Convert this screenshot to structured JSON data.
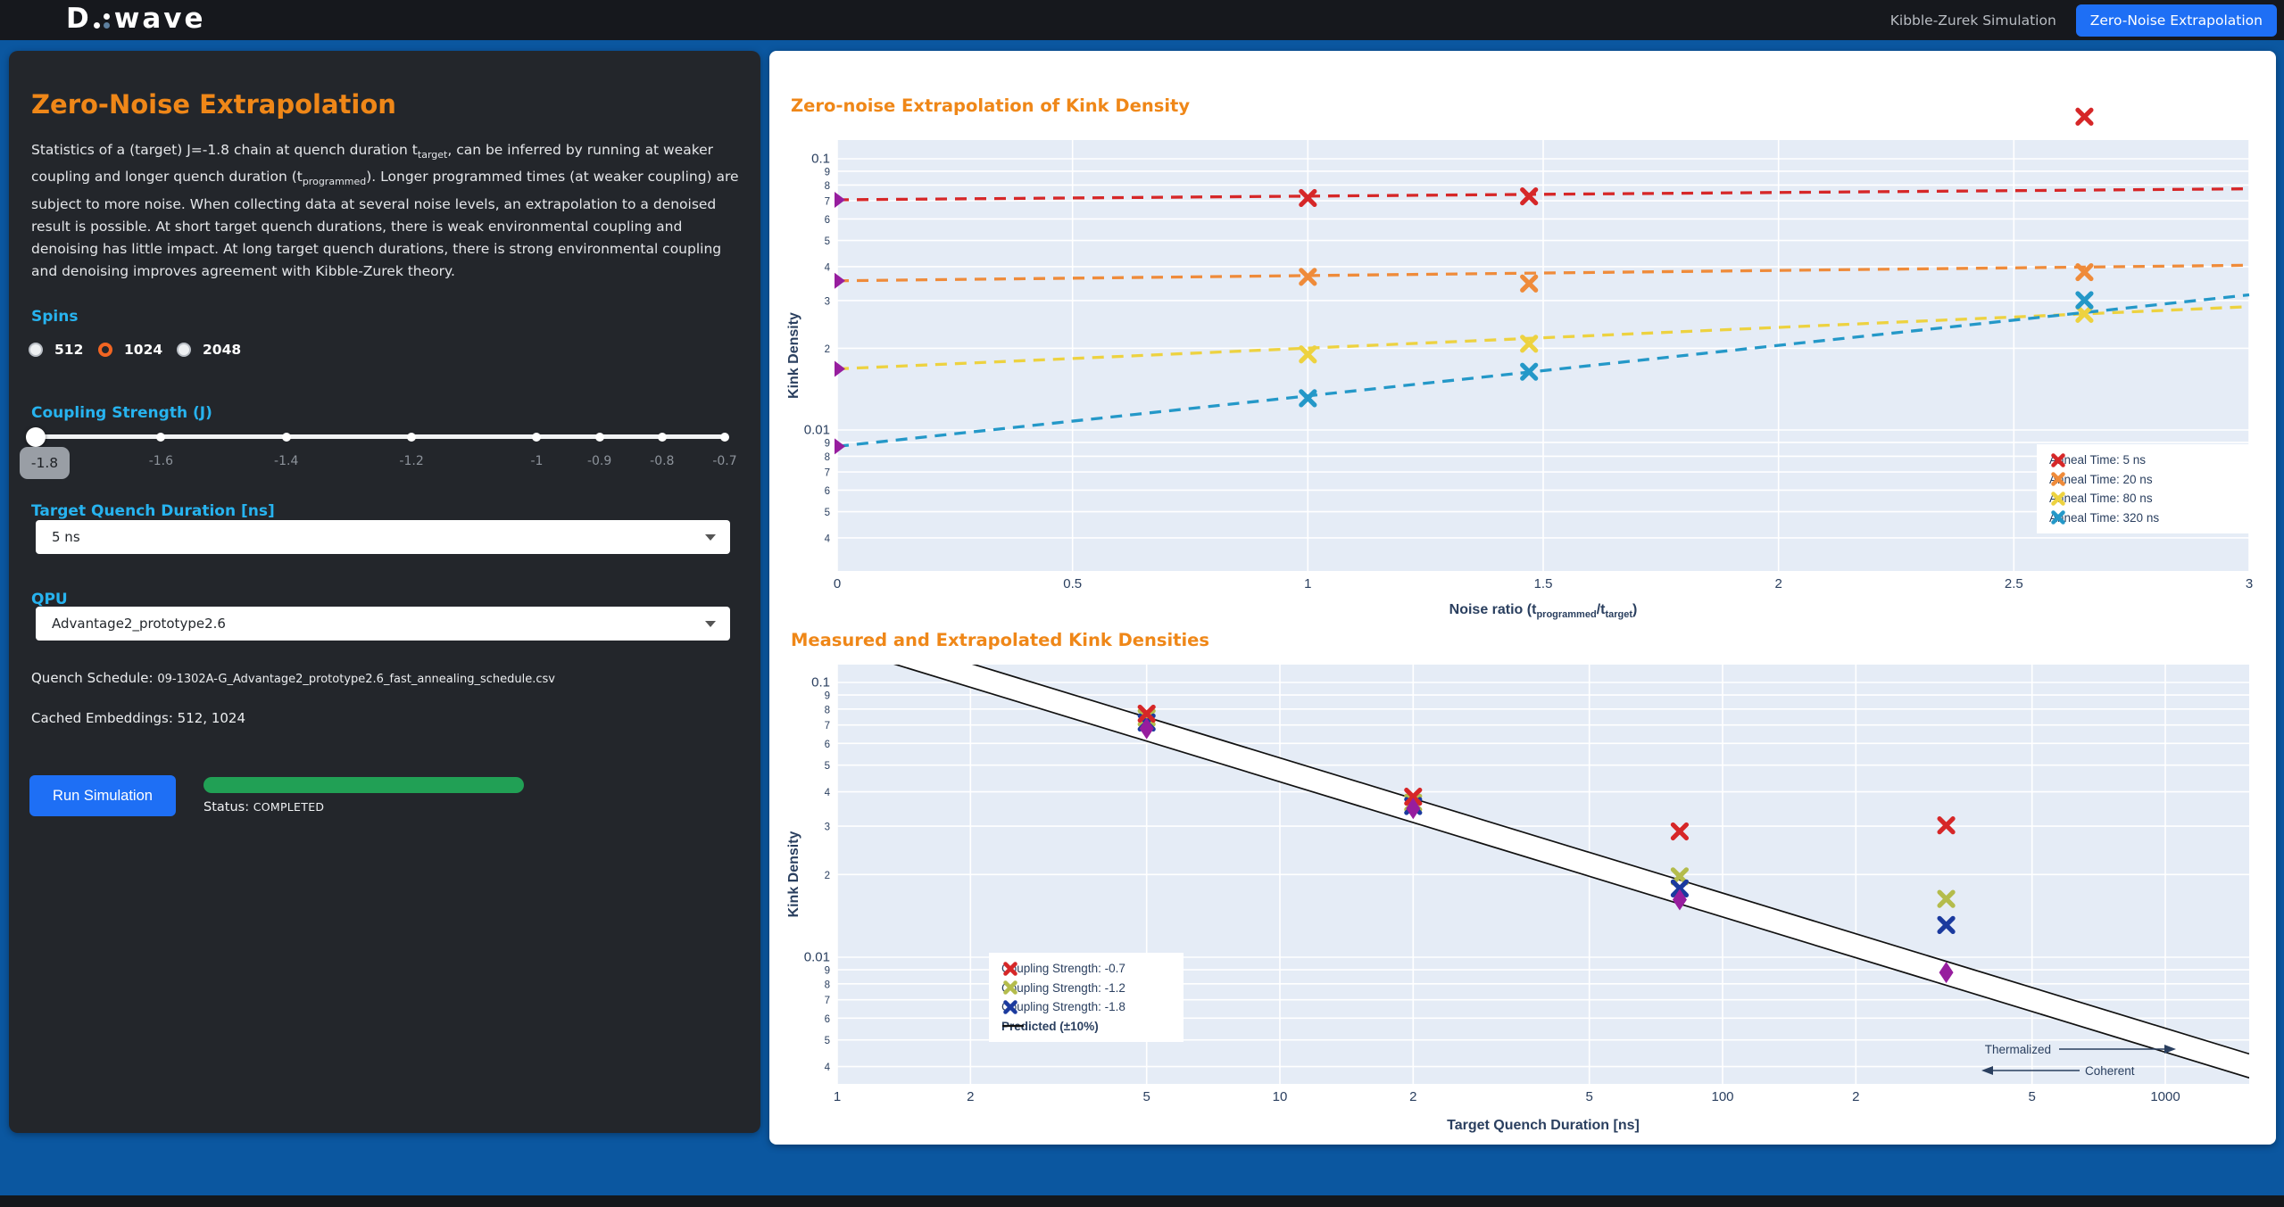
{
  "header": {
    "logo_text_d": "D",
    "logo_text_wave": "wave",
    "nav": [
      {
        "label": "Kibble-Zurek Simulation",
        "active": false
      },
      {
        "label": "Zero-Noise Extrapolation",
        "active": true
      }
    ]
  },
  "panel": {
    "title": "Zero-Noise Extrapolation",
    "description_segments": [
      {
        "t": "Statistics of a (target) J=-1.8 chain at quench duration t"
      },
      {
        "sub": "target"
      },
      {
        "t": ", can be inferred by running at weaker coupling and longer quench duration (t"
      },
      {
        "sub": "programmed"
      },
      {
        "t": "). Longer programmed times (at weaker coupling) are subject to more noise. When collecting data at several noise levels, an extrapolation to a denoised result is possible. At short target quench durations, there is weak environmental coupling and denoising has little impact. At long target quench durations, there is strong environmental coupling and denoising improves agreement with Kibble-Zurek theory."
      }
    ],
    "spins": {
      "label": "Spins",
      "options": [
        {
          "label": "512",
          "selected": false
        },
        {
          "label": "1024",
          "selected": true
        },
        {
          "label": "2048",
          "selected": false
        }
      ]
    },
    "coupling": {
      "label": "Coupling Strength (J)",
      "min": -1.8,
      "max": -0.7,
      "value": -1.8,
      "value_label": "-1.8",
      "marks": [
        {
          "v": -1.8,
          "label": ""
        },
        {
          "v": -1.6,
          "label": "-1.6"
        },
        {
          "v": -1.4,
          "label": "-1.4"
        },
        {
          "v": -1.2,
          "label": "-1.2"
        },
        {
          "v": -1.0,
          "label": "-1"
        },
        {
          "v": -0.9,
          "label": "-0.9"
        },
        {
          "v": -0.8,
          "label": "-0.8"
        },
        {
          "v": -0.7,
          "label": "-0.7"
        }
      ]
    },
    "tqd": {
      "label": "Target Quench Duration [ns]",
      "value": "5 ns"
    },
    "qpu": {
      "label": "QPU",
      "value": "Advantage2_prototype2.6"
    },
    "quench_schedule_label": "Quench Schedule:",
    "quench_schedule_value": "09-1302A-G_Advantage2_prototype2.6_fast_annealing_schedule.csv",
    "cached_label": "Cached Embeddings:",
    "cached_value": "512, 1024",
    "run_button": "Run Simulation",
    "status_label": "Status:",
    "status_value": "COMPLETED",
    "progress_pct": 100
  },
  "chart_data": [
    {
      "type": "scatter",
      "title": "Zero-noise Extrapolation of Kink Density",
      "ylabel": "Kink Density",
      "xlabel_parts": [
        {
          "t": "Noise ratio (t"
        },
        {
          "sub": "programmed"
        },
        {
          "t": "/t"
        },
        {
          "sub": "target"
        },
        {
          "t": ")"
        }
      ],
      "xlim": [
        0,
        3
      ],
      "ylim_log": [
        0.003,
        0.117
      ],
      "grid": true,
      "legend_position": "inside-right",
      "x_ticks": [
        [
          0,
          "0"
        ],
        [
          0.5,
          "0.5"
        ],
        [
          1,
          "1"
        ],
        [
          1.5,
          "1.5"
        ],
        [
          2,
          "2"
        ],
        [
          2.5,
          "2.5"
        ],
        [
          3,
          "3"
        ]
      ],
      "y_ticks": [
        [
          0.1,
          "0.1"
        ],
        [
          0.09,
          "9"
        ],
        [
          0.08,
          "8"
        ],
        [
          0.07,
          "7"
        ],
        [
          0.06,
          "6"
        ],
        [
          0.05,
          "5"
        ],
        [
          0.04,
          "4"
        ],
        [
          0.03,
          "3"
        ],
        [
          0.02,
          "2"
        ],
        [
          0.01,
          "0.01"
        ],
        [
          0.009,
          "9"
        ],
        [
          0.008,
          "8"
        ],
        [
          0.007,
          "7"
        ],
        [
          0.006,
          "6"
        ],
        [
          0.005,
          "5"
        ],
        [
          0.004,
          "4"
        ]
      ],
      "extra_gridlines_y": [
        0.003
      ],
      "x": [
        1.0,
        1.47,
        2.65
      ],
      "series": [
        {
          "name": "Anneal Time: 5 ns",
          "color": "#d62728",
          "measured": [
            0.0717,
            0.0727,
            0.143
          ],
          "extrapolated": 0.0706,
          "fit_line_end": 0.0775
        },
        {
          "name": "Anneal Time: 20 ns",
          "color": "#ef8b3a",
          "measured": [
            0.0367,
            0.0347,
            0.0382
          ],
          "extrapolated": 0.0355,
          "fit_line_end": 0.0405
        },
        {
          "name": "Anneal Time: 80 ns",
          "color": "#edd240",
          "measured": [
            0.019,
            0.0208,
            0.0268
          ],
          "extrapolated": 0.0168,
          "fit_line_end": 0.0285
        },
        {
          "name": "Anneal Time: 320 ns",
          "color": "#2498c8",
          "measured": [
            0.0131,
            0.0164,
            0.0301
          ],
          "extrapolated": 0.0087,
          "fit_line_end": 0.0315
        }
      ],
      "extrapolated_marker": {
        "shape": "triangle-right",
        "color": "#971d9e",
        "x": 0
      }
    },
    {
      "type": "scatter",
      "title": "Measured and Extrapolated Kink Densities",
      "ylabel": "Kink Density",
      "xlabel": "Target Quench Duration [ns]",
      "xlim_log": [
        1,
        1549
      ],
      "ylim_log": [
        0.0035,
        0.115
      ],
      "grid": true,
      "legend_position": "inside-left-bottom",
      "x_ticks": [
        [
          1,
          "1"
        ],
        [
          2,
          "2"
        ],
        [
          5,
          "5"
        ],
        [
          10,
          "10"
        ],
        [
          20,
          "2"
        ],
        [
          50,
          "5"
        ],
        [
          100,
          "100"
        ],
        [
          200,
          "2"
        ],
        [
          500,
          "5"
        ],
        [
          1000,
          "1000"
        ]
      ],
      "y_ticks": [
        [
          0.1,
          "0.1"
        ],
        [
          0.09,
          "9"
        ],
        [
          0.08,
          "8"
        ],
        [
          0.07,
          "7"
        ],
        [
          0.06,
          "6"
        ],
        [
          0.05,
          "5"
        ],
        [
          0.04,
          "4"
        ],
        [
          0.03,
          "3"
        ],
        [
          0.02,
          "2"
        ],
        [
          0.01,
          "0.01"
        ],
        [
          0.009,
          "9"
        ],
        [
          0.008,
          "8"
        ],
        [
          0.007,
          "7"
        ],
        [
          0.006,
          "6"
        ],
        [
          0.005,
          "5"
        ],
        [
          0.004,
          "4"
        ]
      ],
      "extra_gridlines_y": [
        0.003
      ],
      "x": [
        5,
        20,
        80,
        320
      ],
      "series": [
        {
          "name": "Coupling Strength: -0.7",
          "color": "#d62728",
          "values": [
            0.077,
            0.0384,
            0.0287,
            0.0302
          ]
        },
        {
          "name": "Coupling Strength: -1.2",
          "color": "#b4bc4c",
          "values": [
            0.0745,
            0.0365,
            0.0197,
            0.0163
          ]
        },
        {
          "name": "Coupling Strength: -1.8",
          "color": "#1b3a9e",
          "values": [
            0.0715,
            0.0355,
            0.0178,
            0.0131
          ]
        }
      ],
      "extrapolated": {
        "color": "#971d9e",
        "shape": "diamond-tall",
        "values": [
          0.068,
          0.0348,
          0.0162,
          0.0088
        ]
      },
      "predicted": {
        "name": "Predicted (±10%)",
        "amplitude": 0.15,
        "exponent": -0.492,
        "band_pct": 10,
        "color": "#111111",
        "fill": "#ffffff"
      },
      "annotations": [
        {
          "text": "Thermalized",
          "arrow": "right"
        },
        {
          "text": "Coherent",
          "arrow": "left"
        }
      ]
    }
  ]
}
